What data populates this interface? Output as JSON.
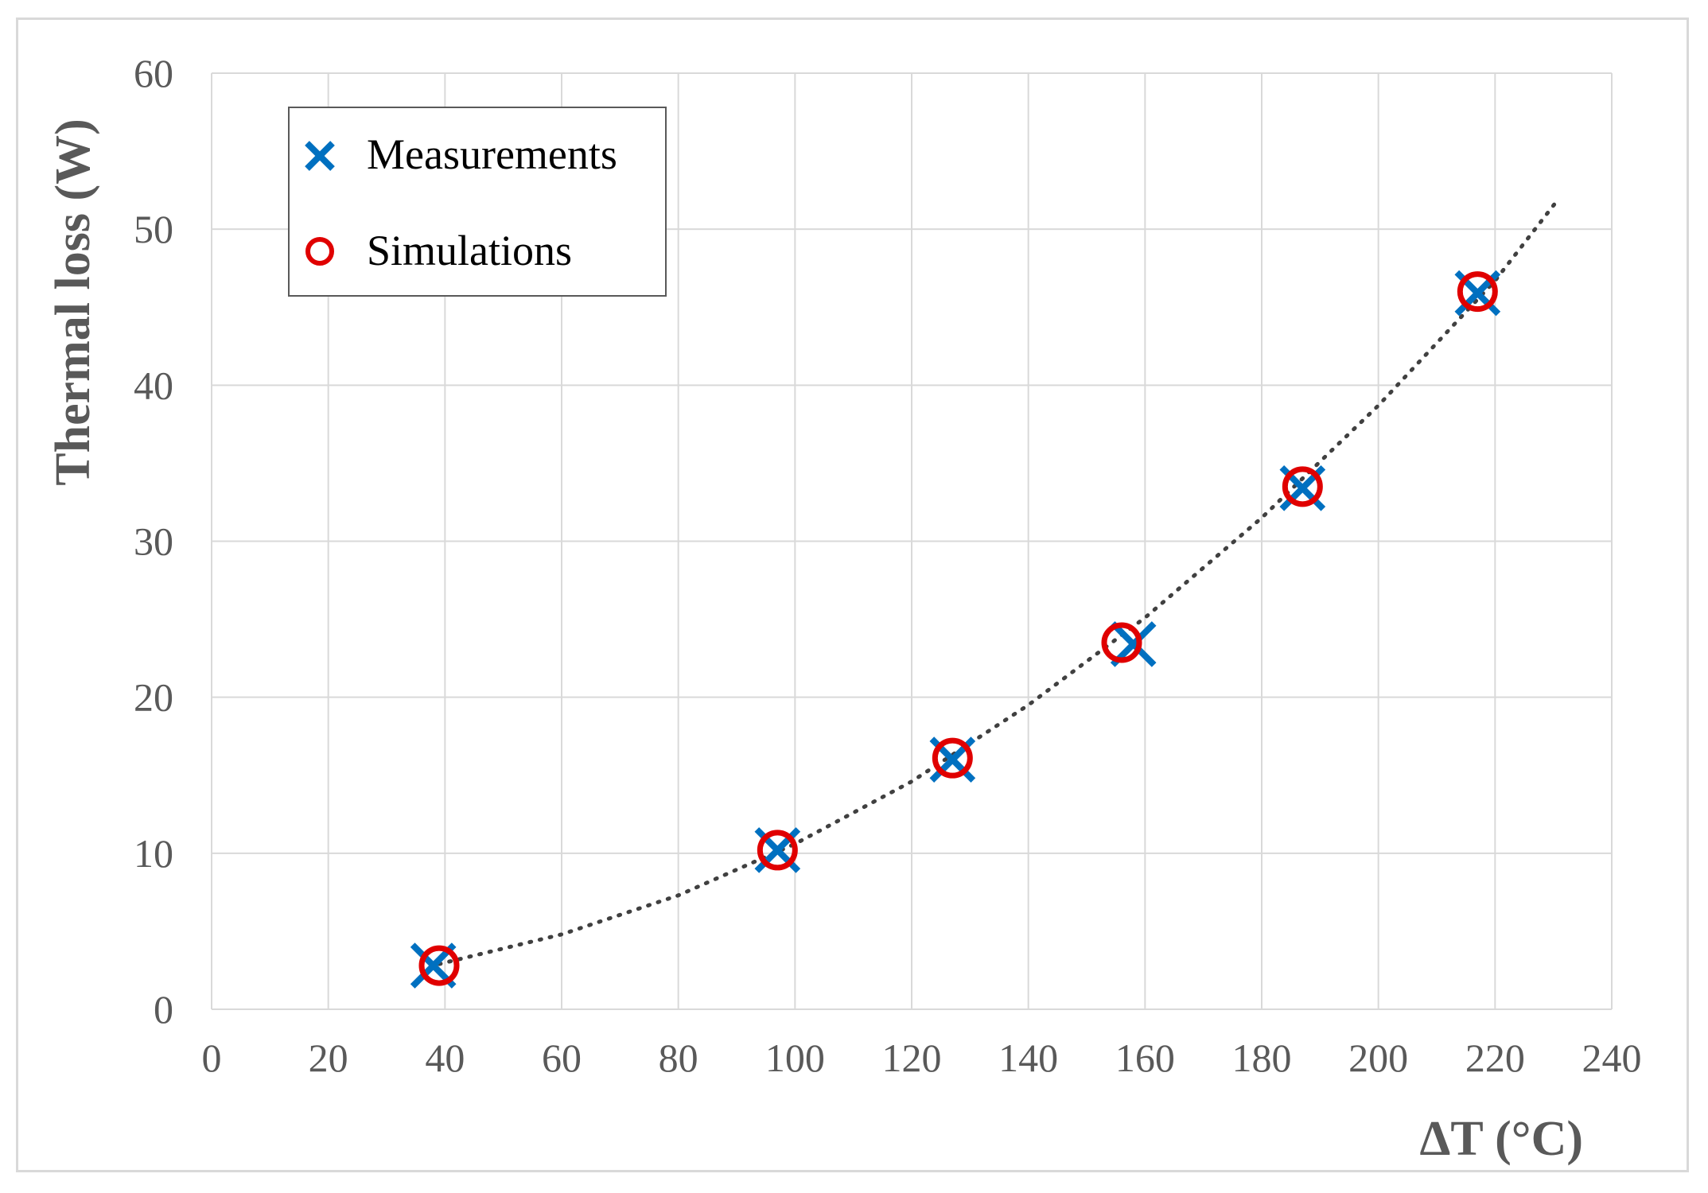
{
  "chart_data": {
    "type": "scatter",
    "title": "",
    "xlabel": "ΔT (°C)",
    "ylabel": "Thermal loss (W)",
    "xlim": [
      0,
      240
    ],
    "ylim": [
      0,
      60
    ],
    "x_ticks": [
      0,
      20,
      40,
      60,
      80,
      100,
      120,
      140,
      160,
      180,
      200,
      220,
      240
    ],
    "y_ticks": [
      0,
      10,
      20,
      30,
      40,
      50,
      60
    ],
    "grid": true,
    "legend_position": "top-left",
    "series": [
      {
        "name": "Measurements",
        "marker": "x",
        "color": "#0070c0",
        "points": [
          [
            38,
            2.8
          ],
          [
            97,
            10.2
          ],
          [
            127,
            16.0
          ],
          [
            158,
            23.4
          ],
          [
            187,
            33.4
          ],
          [
            217,
            45.9
          ]
        ]
      },
      {
        "name": "Simulations",
        "marker": "circle",
        "color": "#e00000",
        "points": [
          [
            39,
            2.8
          ],
          [
            97,
            10.2
          ],
          [
            127,
            16.1
          ],
          [
            156,
            23.5
          ],
          [
            187,
            33.5
          ],
          [
            217,
            46.0
          ]
        ]
      }
    ],
    "trendline": {
      "style": "dotted",
      "color": "#404040",
      "x_range": [
        39,
        231
      ],
      "points": [
        [
          39,
          2.9
        ],
        [
          60,
          4.8
        ],
        [
          80,
          7.3
        ],
        [
          100,
          10.6
        ],
        [
          120,
          14.6
        ],
        [
          140,
          19.5
        ],
        [
          160,
          25.1
        ],
        [
          180,
          31.5
        ],
        [
          200,
          38.7
        ],
        [
          220,
          46.7
        ],
        [
          231,
          52.0
        ]
      ]
    }
  }
}
